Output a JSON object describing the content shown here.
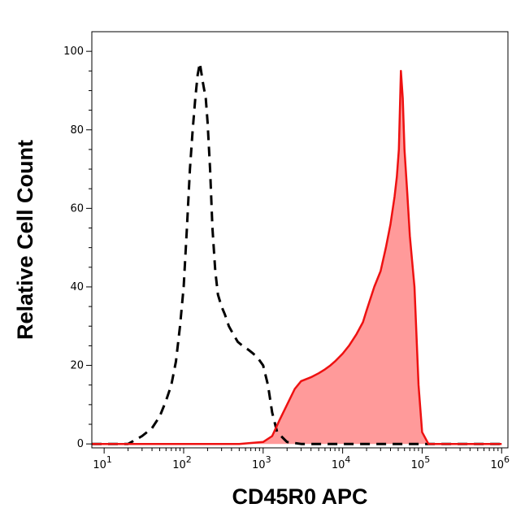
{
  "chart_data": {
    "type": "area",
    "title": "",
    "xlabel": "CD45R0 APC",
    "ylabel": "Relative Cell Count",
    "x_scale": "log",
    "xlim": [
      7,
      1200000
    ],
    "ylim": [
      -1,
      105
    ],
    "x_ticks": [
      {
        "value": 10,
        "base": "10",
        "exp": "1"
      },
      {
        "value": 100,
        "base": "10",
        "exp": "2"
      },
      {
        "value": 1000,
        "base": "10",
        "exp": "3"
      },
      {
        "value": 10000,
        "base": "10",
        "exp": "4"
      },
      {
        "value": 100000,
        "base": "10",
        "exp": "5"
      },
      {
        "value": 1000000,
        "base": "10",
        "exp": "6"
      }
    ],
    "y_ticks": [
      0,
      20,
      40,
      60,
      80,
      100
    ],
    "grid": false,
    "legend": "none",
    "series": [
      {
        "style": "dashed",
        "color": "#000000",
        "fill": "none",
        "x": [
          7,
          20,
          30,
          40,
          50,
          60,
          70,
          80,
          90,
          100,
          110,
          120,
          130,
          140,
          150,
          160,
          175,
          190,
          200,
          215,
          230,
          250,
          270,
          300,
          330,
          370,
          420,
          480,
          550,
          650,
          750,
          850,
          1000,
          1150,
          1300,
          1500,
          2000,
          3000,
          1000000
        ],
        "y": [
          0,
          0,
          2,
          4,
          7,
          11,
          15,
          21,
          30,
          40,
          55,
          70,
          80,
          88,
          94,
          97,
          92,
          88,
          82,
          70,
          55,
          44,
          38,
          35,
          33,
          30,
          28,
          26,
          25,
          24,
          23,
          22,
          20,
          15,
          8,
          3,
          0.5,
          0,
          0
        ]
      },
      {
        "style": "solid",
        "color": "#ee1111",
        "fill": "#ff9a9a",
        "x": [
          7,
          500,
          1000,
          1300,
          1600,
          2000,
          2500,
          3000,
          4000,
          5000,
          6000,
          7000,
          8000,
          10000,
          12000,
          15000,
          18000,
          20000,
          25000,
          30000,
          35000,
          40000,
          45000,
          48000,
          51000,
          54000,
          57000,
          60000,
          65000,
          70000,
          80000,
          90000,
          100000,
          120000,
          1000000
        ],
        "y": [
          0,
          0,
          0.5,
          2,
          6,
          10,
          14,
          16,
          17,
          18,
          19,
          20,
          21,
          23,
          25,
          28,
          31,
          34,
          40,
          44,
          50,
          56,
          63,
          68,
          75,
          95,
          88,
          75,
          64,
          53,
          40,
          15,
          3,
          0,
          0
        ]
      }
    ]
  }
}
